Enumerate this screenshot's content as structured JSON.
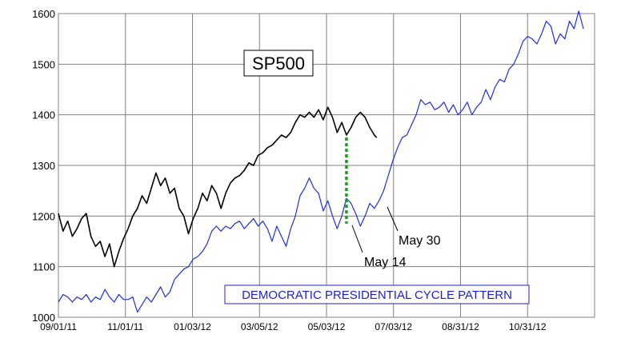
{
  "chart_data": {
    "type": "line",
    "title": "SP500",
    "xlabel": "",
    "ylabel": "",
    "ylim": [
      1000,
      1600
    ],
    "y_ticks": [
      "1000",
      "1100",
      "1200",
      "1300",
      "1400",
      "1500",
      "1600"
    ],
    "x_ticks": [
      "09/01/11",
      "11/01/11",
      "01/03/12",
      "03/05/12",
      "05/03/12",
      "07/03/12",
      "08/31/12",
      "10/31/12"
    ],
    "grid": true,
    "colors": {
      "sp500": "#000000",
      "pattern": "#1f2fe0",
      "marker": "#1a9c1a",
      "legend_border": "#1f1fd0"
    },
    "series": [
      {
        "id": "sp500",
        "values": [
          [
            0,
            1205
          ],
          [
            2,
            1170
          ],
          [
            4,
            1190
          ],
          [
            6,
            1160
          ],
          [
            8,
            1175
          ],
          [
            10,
            1195
          ],
          [
            12,
            1205
          ],
          [
            14,
            1160
          ],
          [
            16,
            1140
          ],
          [
            18,
            1150
          ],
          [
            20,
            1120
          ],
          [
            22,
            1145
          ],
          [
            24,
            1100
          ],
          [
            26,
            1130
          ],
          [
            28,
            1155
          ],
          [
            30,
            1175
          ],
          [
            32,
            1200
          ],
          [
            34,
            1215
          ],
          [
            36,
            1240
          ],
          [
            38,
            1225
          ],
          [
            40,
            1255
          ],
          [
            42,
            1285
          ],
          [
            44,
            1260
          ],
          [
            46,
            1275
          ],
          [
            48,
            1245
          ],
          [
            50,
            1255
          ],
          [
            52,
            1215
          ],
          [
            54,
            1200
          ],
          [
            56,
            1165
          ],
          [
            58,
            1195
          ],
          [
            60,
            1215
          ],
          [
            62,
            1245
          ],
          [
            64,
            1230
          ],
          [
            66,
            1260
          ],
          [
            68,
            1245
          ],
          [
            70,
            1215
          ],
          [
            72,
            1245
          ],
          [
            74,
            1265
          ],
          [
            76,
            1275
          ],
          [
            78,
            1280
          ],
          [
            80,
            1290
          ],
          [
            82,
            1305
          ],
          [
            84,
            1300
          ],
          [
            86,
            1320
          ],
          [
            88,
            1325
          ],
          [
            90,
            1335
          ],
          [
            92,
            1340
          ],
          [
            94,
            1350
          ],
          [
            96,
            1360
          ],
          [
            98,
            1355
          ],
          [
            100,
            1365
          ],
          [
            102,
            1385
          ],
          [
            104,
            1400
          ],
          [
            106,
            1395
          ],
          [
            108,
            1405
          ],
          [
            110,
            1395
          ],
          [
            112,
            1410
          ],
          [
            114,
            1390
          ],
          [
            116,
            1415
          ],
          [
            118,
            1395
          ],
          [
            120,
            1365
          ],
          [
            122,
            1385
          ],
          [
            124,
            1360
          ],
          [
            126,
            1375
          ],
          [
            128,
            1395
          ],
          [
            130,
            1405
          ],
          [
            132,
            1395
          ],
          [
            134,
            1375
          ],
          [
            136,
            1360
          ],
          [
            137,
            1355
          ]
        ]
      },
      {
        "id": "pattern",
        "values": [
          [
            0,
            1030
          ],
          [
            2,
            1045
          ],
          [
            4,
            1040
          ],
          [
            6,
            1030
          ],
          [
            8,
            1040
          ],
          [
            10,
            1035
          ],
          [
            12,
            1045
          ],
          [
            14,
            1030
          ],
          [
            16,
            1040
          ],
          [
            18,
            1035
          ],
          [
            20,
            1055
          ],
          [
            22,
            1040
          ],
          [
            24,
            1030
          ],
          [
            26,
            1045
          ],
          [
            28,
            1035
          ],
          [
            30,
            1035
          ],
          [
            32,
            1040
          ],
          [
            34,
            1010
          ],
          [
            36,
            1025
          ],
          [
            38,
            1040
          ],
          [
            40,
            1030
          ],
          [
            42,
            1045
          ],
          [
            44,
            1060
          ],
          [
            46,
            1040
          ],
          [
            48,
            1050
          ],
          [
            50,
            1075
          ],
          [
            52,
            1085
          ],
          [
            54,
            1095
          ],
          [
            56,
            1100
          ],
          [
            58,
            1115
          ],
          [
            60,
            1120
          ],
          [
            62,
            1130
          ],
          [
            64,
            1145
          ],
          [
            66,
            1170
          ],
          [
            68,
            1180
          ],
          [
            70,
            1170
          ],
          [
            72,
            1180
          ],
          [
            74,
            1175
          ],
          [
            76,
            1185
          ],
          [
            78,
            1190
          ],
          [
            80,
            1175
          ],
          [
            82,
            1185
          ],
          [
            84,
            1195
          ],
          [
            86,
            1180
          ],
          [
            88,
            1190
          ],
          [
            90,
            1175
          ],
          [
            92,
            1150
          ],
          [
            94,
            1180
          ],
          [
            96,
            1160
          ],
          [
            98,
            1140
          ],
          [
            100,
            1175
          ],
          [
            102,
            1200
          ],
          [
            104,
            1240
          ],
          [
            106,
            1255
          ],
          [
            108,
            1275
          ],
          [
            110,
            1255
          ],
          [
            112,
            1245
          ],
          [
            114,
            1210
          ],
          [
            116,
            1230
          ],
          [
            118,
            1200
          ],
          [
            120,
            1175
          ],
          [
            122,
            1200
          ],
          [
            124,
            1235
          ],
          [
            126,
            1225
          ],
          [
            128,
            1205
          ],
          [
            130,
            1180
          ],
          [
            132,
            1200
          ],
          [
            134,
            1225
          ],
          [
            136,
            1215
          ],
          [
            138,
            1230
          ],
          [
            140,
            1250
          ],
          [
            142,
            1280
          ],
          [
            144,
            1310
          ],
          [
            146,
            1335
          ],
          [
            148,
            1355
          ],
          [
            150,
            1360
          ],
          [
            152,
            1380
          ],
          [
            154,
            1400
          ],
          [
            156,
            1430
          ],
          [
            158,
            1420
          ],
          [
            160,
            1425
          ],
          [
            162,
            1410
          ],
          [
            164,
            1415
          ],
          [
            166,
            1425
          ],
          [
            168,
            1405
          ],
          [
            170,
            1420
          ],
          [
            172,
            1400
          ],
          [
            174,
            1410
          ],
          [
            176,
            1425
          ],
          [
            178,
            1400
          ],
          [
            180,
            1415
          ],
          [
            182,
            1425
          ],
          [
            184,
            1450
          ],
          [
            186,
            1430
          ],
          [
            188,
            1455
          ],
          [
            190,
            1470
          ],
          [
            192,
            1465
          ],
          [
            194,
            1490
          ],
          [
            196,
            1500
          ],
          [
            198,
            1520
          ],
          [
            200,
            1545
          ],
          [
            202,
            1555
          ],
          [
            204,
            1550
          ],
          [
            206,
            1540
          ],
          [
            208,
            1560
          ],
          [
            210,
            1585
          ],
          [
            212,
            1575
          ],
          [
            214,
            1540
          ],
          [
            216,
            1560
          ],
          [
            218,
            1550
          ],
          [
            220,
            1585
          ],
          [
            222,
            1570
          ],
          [
            224,
            1605
          ],
          [
            226,
            1570
          ]
        ]
      }
    ],
    "marker_line": {
      "x": 124,
      "y_from": 1355,
      "y_to": 1185
    },
    "annotations": [
      {
        "text": "May 30",
        "x": 132,
        "y": 1130
      },
      {
        "text": "May 14",
        "x": 121,
        "y": 1095
      }
    ],
    "legend_label": "DEMOCRATIC PRESIDENTIAL CYCLE PATTERN"
  }
}
